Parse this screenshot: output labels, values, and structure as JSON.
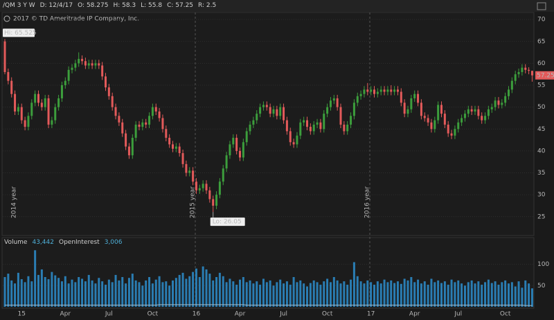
{
  "chart_data": {
    "type": "candlestick",
    "header": [
      "/QM 3 Y W",
      "D: 12/4/17",
      "O: 58.275",
      "H: 58.3",
      "L: 55.8",
      "C: 57.25",
      "R: 2.5"
    ],
    "copyright": "2017 © TD Ameritrade IP Company, Inc.",
    "annotations": {
      "high": "Hi: 65.525",
      "low": "Lo: 26.05"
    },
    "year_labels": [
      "2014 year",
      "2015 year",
      "2016 year"
    ],
    "up_color": "#3c9e3c",
    "down_color": "#e35a5a",
    "ylim": [
      20.7,
      71.6
    ],
    "yticks": [
      25,
      30,
      35,
      40,
      45,
      50,
      55,
      60,
      65,
      70
    ],
    "grid": true,
    "categories": [
      null,
      null,
      null,
      null,
      null,
      "15",
      null,
      null,
      null,
      null,
      null,
      null,
      null,
      null,
      null,
      null,
      null,
      null,
      "Apr",
      null,
      null,
      null,
      null,
      null,
      null,
      null,
      null,
      null,
      null,
      null,
      null,
      "Jul",
      null,
      null,
      null,
      null,
      null,
      null,
      null,
      null,
      null,
      null,
      null,
      null,
      "Oct",
      null,
      null,
      null,
      null,
      null,
      null,
      null,
      null,
      null,
      null,
      null,
      null,
      "16",
      null,
      null,
      null,
      null,
      null,
      null,
      null,
      null,
      null,
      null,
      null,
      null,
      "Apr",
      null,
      null,
      null,
      null,
      null,
      null,
      null,
      null,
      null,
      null,
      null,
      null,
      "Jul",
      null,
      null,
      null,
      null,
      null,
      null,
      null,
      null,
      null,
      null,
      null,
      null,
      "Oct",
      null,
      null,
      null,
      null,
      null,
      null,
      null,
      null,
      null,
      null,
      null,
      null,
      "17",
      null,
      null,
      null,
      null,
      null,
      null,
      null,
      null,
      null,
      null,
      null,
      null,
      "Apr",
      null,
      null,
      null,
      null,
      null,
      null,
      null,
      null,
      null,
      null,
      null,
      null,
      "Jul",
      null,
      null,
      null,
      null,
      null,
      null,
      null,
      null,
      null,
      null,
      null,
      null,
      null,
      "Oct",
      null,
      null,
      null,
      null,
      null,
      null,
      null,
      null
    ],
    "ohlc": [
      [
        65,
        65.525,
        57.5,
        58
      ],
      [
        58,
        58.8,
        55.2,
        56
      ],
      [
        56,
        56.8,
        52.2,
        53
      ],
      [
        53,
        53.8,
        48.2,
        49
      ],
      [
        49,
        50.8,
        48.2,
        50
      ],
      [
        50,
        50.8,
        46.2,
        47
      ],
      [
        47,
        47.8,
        44.7,
        45.5
      ],
      [
        45.5,
        48.8,
        44.7,
        48
      ],
      [
        48,
        51.8,
        47.2,
        51
      ],
      [
        51,
        53.8,
        50.2,
        53
      ],
      [
        53,
        53.8,
        50.2,
        51
      ],
      [
        51,
        51.8,
        49.2,
        50
      ],
      [
        50,
        52.8,
        49.2,
        52
      ],
      [
        52,
        52.8,
        45.2,
        46
      ],
      [
        46,
        47.8,
        45.2,
        47
      ],
      [
        47,
        50.8,
        46.2,
        50
      ],
      [
        50,
        52.8,
        49.2,
        52
      ],
      [
        52,
        55.8,
        51.2,
        55
      ],
      [
        55,
        56.8,
        54.2,
        56
      ],
      [
        56,
        59.3,
        55.2,
        58.5
      ],
      [
        58.5,
        59.8,
        57.7,
        59
      ],
      [
        59,
        60.8,
        58.2,
        60
      ],
      [
        60,
        62.5,
        59.2,
        61
      ],
      [
        61,
        61.8,
        59.7,
        60.5
      ],
      [
        60.5,
        61.3,
        58.7,
        59.5
      ],
      [
        59.5,
        60.8,
        58.7,
        60
      ],
      [
        60,
        60.8,
        58.7,
        59.5
      ],
      [
        59.5,
        60.8,
        58.7,
        60
      ],
      [
        60,
        60.8,
        58.7,
        59.5
      ],
      [
        59.5,
        60.3,
        56.2,
        57
      ],
      [
        57,
        57.8,
        53.7,
        54.5
      ],
      [
        54.5,
        55.3,
        51.7,
        52.5
      ],
      [
        52.5,
        53.3,
        49.2,
        50
      ],
      [
        50,
        50.8,
        47.2,
        48
      ],
      [
        48,
        48.8,
        45.7,
        46.5
      ],
      [
        46.5,
        47.3,
        43.2,
        44
      ],
      [
        44,
        44.8,
        40.2,
        41
      ],
      [
        41,
        41.8,
        38.2,
        39
      ],
      [
        39,
        43.8,
        38.2,
        43
      ],
      [
        43,
        46.8,
        42.2,
        46
      ],
      [
        46,
        46.8,
        44.7,
        45.5
      ],
      [
        45.5,
        47.3,
        44.7,
        46.5
      ],
      [
        46.5,
        47.3,
        45.2,
        46
      ],
      [
        46,
        48.8,
        45.2,
        48
      ],
      [
        48,
        50.8,
        47.2,
        50
      ],
      [
        50,
        50.8,
        48.2,
        49
      ],
      [
        49,
        49.8,
        46.7,
        47.5
      ],
      [
        47.5,
        48.3,
        44.2,
        45
      ],
      [
        45,
        45.8,
        42.2,
        43
      ],
      [
        43,
        43.8,
        40.7,
        41.5
      ],
      [
        41.5,
        42.3,
        39.7,
        40.5
      ],
      [
        40.5,
        41.8,
        39.7,
        41
      ],
      [
        41,
        41.8,
        38.7,
        39.5
      ],
      [
        39.5,
        40.3,
        36.2,
        37
      ],
      [
        37,
        37.8,
        34.2,
        35
      ],
      [
        35,
        36.3,
        34.2,
        35.5
      ],
      [
        35.5,
        36.3,
        32.2,
        33
      ],
      [
        33,
        33.8,
        30.2,
        31
      ],
      [
        31,
        32.3,
        30.2,
        31.5
      ],
      [
        31.5,
        33.3,
        30.7,
        32.5
      ],
      [
        32.5,
        33.3,
        30.2,
        31
      ],
      [
        31,
        31.8,
        28.2,
        29
      ],
      [
        29,
        29.8,
        26.05,
        27.5
      ],
      [
        27.5,
        30.8,
        26.7,
        30
      ],
      [
        30,
        33.8,
        29.2,
        33
      ],
      [
        33,
        36.8,
        32.2,
        36
      ],
      [
        36,
        39.8,
        35.2,
        39
      ],
      [
        39,
        42.3,
        38.2,
        41.5
      ],
      [
        41.5,
        43.8,
        40.7,
        43
      ],
      [
        43,
        43.8,
        39.2,
        40
      ],
      [
        40,
        40.8,
        37.7,
        38.5
      ],
      [
        38.5,
        42.8,
        37.7,
        42
      ],
      [
        42,
        45.3,
        41.2,
        44.5
      ],
      [
        44.5,
        46.8,
        43.7,
        46
      ],
      [
        46,
        47.8,
        45.2,
        47
      ],
      [
        47,
        49.3,
        46.2,
        48.5
      ],
      [
        48.5,
        50.8,
        47.7,
        50
      ],
      [
        50,
        51.3,
        49.2,
        50.5
      ],
      [
        50.5,
        51.3,
        49.2,
        50
      ],
      [
        50,
        50.8,
        47.7,
        48.5
      ],
      [
        48.5,
        50.3,
        47.7,
        49.5
      ],
      [
        49.5,
        50.3,
        47.2,
        48
      ],
      [
        48,
        50.8,
        47.2,
        50
      ],
      [
        50,
        50.8,
        46.2,
        47
      ],
      [
        47,
        47.8,
        43.7,
        44.5
      ],
      [
        44.5,
        45.3,
        41.2,
        42
      ],
      [
        42,
        42.8,
        40.7,
        41.5
      ],
      [
        41.5,
        44.3,
        40.7,
        43.5
      ],
      [
        43.5,
        47.3,
        42.7,
        46.5
      ],
      [
        46.5,
        47.8,
        45.7,
        47
      ],
      [
        47,
        47.8,
        44.7,
        45.5
      ],
      [
        45.5,
        46.3,
        43.7,
        44.5
      ],
      [
        44.5,
        46.8,
        43.7,
        46
      ],
      [
        46,
        47.3,
        45.2,
        46.5
      ],
      [
        46.5,
        47.3,
        44.2,
        45
      ],
      [
        45,
        49.3,
        44.2,
        48.5
      ],
      [
        48.5,
        50.8,
        47.7,
        50
      ],
      [
        50,
        52.3,
        49.2,
        51.5
      ],
      [
        51.5,
        52.8,
        50.7,
        52
      ],
      [
        52,
        52.8,
        49.2,
        50
      ],
      [
        50,
        50.8,
        45.2,
        46
      ],
      [
        46,
        46.8,
        43.7,
        44.5
      ],
      [
        44.5,
        46.8,
        43.7,
        46
      ],
      [
        46,
        48.8,
        45.2,
        48
      ],
      [
        48,
        51.8,
        47.2,
        51
      ],
      [
        51,
        53.3,
        50.2,
        52.5
      ],
      [
        52.5,
        53.8,
        51.7,
        53
      ],
      [
        53,
        54.8,
        52.2,
        54
      ],
      [
        54,
        55.5,
        52.7,
        53.5
      ],
      [
        53.5,
        54.8,
        52.7,
        54
      ],
      [
        54,
        54.8,
        52.2,
        53
      ],
      [
        53,
        54.3,
        52.2,
        53.5
      ],
      [
        53.5,
        54.8,
        52.7,
        54
      ],
      [
        54,
        54.8,
        52.7,
        53.5
      ],
      [
        53.5,
        54.8,
        52.7,
        54
      ],
      [
        54,
        55,
        52.7,
        53.5
      ],
      [
        53.5,
        54.8,
        52.7,
        54
      ],
      [
        54,
        54.8,
        52.7,
        53.5
      ],
      [
        53.5,
        54.3,
        50.2,
        51
      ],
      [
        51,
        51.8,
        47.7,
        48.5
      ],
      [
        48.5,
        50.3,
        47.7,
        49.5
      ],
      [
        49.5,
        52.8,
        48.7,
        52
      ],
      [
        52,
        53.8,
        51.2,
        53
      ],
      [
        53,
        53.8,
        50.2,
        51
      ],
      [
        51,
        51.8,
        47.2,
        48
      ],
      [
        48,
        48.8,
        46.7,
        47.5
      ],
      [
        47.5,
        48.3,
        45.7,
        46.5
      ],
      [
        46.5,
        47.3,
        44.2,
        45
      ],
      [
        45,
        47.8,
        44.2,
        47
      ],
      [
        47,
        51.3,
        46.2,
        50.5
      ],
      [
        50.5,
        51.3,
        47.7,
        48.5
      ],
      [
        48.5,
        49.3,
        45.2,
        46
      ],
      [
        46,
        46.8,
        43.2,
        44
      ],
      [
        44,
        44.8,
        42.7,
        43.5
      ],
      [
        43.5,
        45.8,
        42.7,
        45
      ],
      [
        45,
        47.3,
        44.2,
        46.5
      ],
      [
        46.5,
        48.3,
        45.7,
        47.5
      ],
      [
        47.5,
        49.3,
        46.7,
        48.5
      ],
      [
        48.5,
        50.3,
        47.7,
        49.5
      ],
      [
        49.5,
        50.3,
        48.2,
        49
      ],
      [
        49,
        50.3,
        48.2,
        49.5
      ],
      [
        49.5,
        50.3,
        47.2,
        48
      ],
      [
        48,
        48.8,
        46.2,
        47
      ],
      [
        47,
        48.8,
        46.2,
        48
      ],
      [
        48,
        50.3,
        47.2,
        49.5
      ],
      [
        49.5,
        50.8,
        48.7,
        50
      ],
      [
        50,
        52.3,
        49.2,
        51.5
      ],
      [
        51.5,
        52.3,
        49.7,
        50.5
      ],
      [
        50.5,
        51.8,
        49.7,
        51
      ],
      [
        51,
        53.3,
        50.2,
        52.5
      ],
      [
        52.5,
        54.8,
        51.7,
        54
      ],
      [
        54,
        56.8,
        53.2,
        56
      ],
      [
        56,
        58.3,
        55.2,
        57.5
      ],
      [
        57.5,
        58.8,
        56.7,
        58
      ],
      [
        58,
        59.8,
        57.2,
        59
      ],
      [
        59,
        59.8,
        57.7,
        58.5
      ],
      [
        58.5,
        59.1,
        57.5,
        58.3
      ],
      [
        58.275,
        58.3,
        55.8,
        57.25
      ]
    ],
    "volume_pane": {
      "header": [
        "Volume",
        "43,442",
        "OpenInterest",
        "3,006"
      ],
      "color": "#2a7db3",
      "oi_color": "#9fb8c8",
      "ylim": [
        0,
        140
      ],
      "yticks": [
        50,
        100
      ],
      "volume": [
        70,
        78,
        62,
        55,
        80,
        65,
        58,
        72,
        60,
        133,
        75,
        88,
        70,
        65,
        82,
        74,
        68,
        60,
        72,
        55,
        64,
        58,
        70,
        66,
        60,
        75,
        62,
        55,
        68,
        60,
        52,
        64,
        58,
        75,
        62,
        70,
        55,
        68,
        78,
        62,
        58,
        50,
        62,
        70,
        55,
        64,
        72,
        58,
        60,
        50,
        62,
        68,
        75,
        80,
        66,
        72,
        82,
        90,
        70,
        95,
        88,
        78,
        62,
        70,
        80,
        72,
        58,
        66,
        60,
        52,
        64,
        70,
        58,
        62,
        55,
        60,
        52,
        66,
        58,
        62,
        50,
        58,
        64,
        55,
        60,
        52,
        70,
        58,
        62,
        55,
        48,
        56,
        62,
        58,
        52,
        60,
        66,
        58,
        70,
        62,
        55,
        60,
        52,
        64,
        105,
        72,
        60,
        55,
        62,
        58,
        52,
        60,
        55,
        64,
        58,
        62,
        56,
        60,
        54,
        66,
        62,
        70,
        58,
        64,
        55,
        60,
        52,
        66,
        58,
        62,
        56,
        60,
        52,
        64,
        58,
        62,
        55,
        50,
        58,
        62,
        55,
        60,
        52,
        58,
        64,
        56,
        60,
        52,
        58,
        62,
        55,
        58,
        48,
        60,
        45,
        62,
        55,
        43.442
      ],
      "open_interest": [
        4,
        4,
        4,
        4,
        4,
        4,
        4,
        4,
        4,
        4,
        4,
        4,
        4,
        4,
        4,
        4,
        4,
        4,
        4,
        4,
        4,
        4,
        4,
        4,
        4,
        4,
        4,
        4,
        4,
        4,
        4,
        4,
        4,
        4,
        4,
        4,
        4,
        4,
        4,
        4,
        4,
        4,
        4,
        4,
        4,
        4,
        5,
        5,
        5,
        5,
        5,
        5,
        5,
        5,
        5,
        5,
        5,
        5,
        5,
        5,
        5,
        5,
        5,
        5,
        5,
        5,
        5,
        5,
        5,
        5,
        5,
        5,
        4,
        4,
        4,
        4,
        4,
        4,
        4,
        4,
        4,
        4,
        4,
        4,
        4,
        4,
        4,
        4,
        4,
        4,
        4,
        4,
        4,
        4,
        4,
        4,
        4,
        4,
        4,
        4,
        4,
        4,
        4,
        4,
        4,
        4,
        4,
        4,
        4,
        4,
        4,
        4,
        4,
        4,
        4,
        4,
        4,
        4,
        4,
        4,
        4,
        4,
        4,
        4,
        4,
        4,
        4,
        4,
        4,
        4,
        4,
        4,
        4,
        4,
        4,
        4,
        4,
        4,
        4,
        4,
        4,
        4,
        4,
        4,
        4,
        4,
        4,
        4,
        4,
        4,
        4,
        4,
        4,
        4,
        4,
        3,
        3,
        3.006
      ]
    }
  }
}
